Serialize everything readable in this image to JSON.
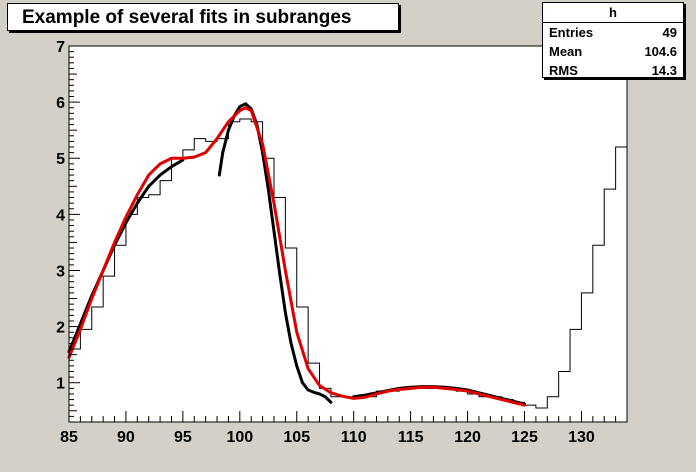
{
  "title": "Example of several fits in subranges",
  "stats": {
    "name": "h",
    "rows": [
      {
        "label": "Entries",
        "value": "49"
      },
      {
        "label": "Mean",
        "value": "104.6"
      },
      {
        "label": "RMS",
        "value": "14.3"
      }
    ]
  },
  "chart_data": {
    "type": "line",
    "xlim": [
      85,
      134
    ],
    "ylim": [
      0.3,
      7
    ],
    "xticks": [
      85,
      90,
      95,
      100,
      105,
      110,
      115,
      120,
      125,
      130
    ],
    "yticks": [
      1,
      2,
      3,
      4,
      5,
      6,
      7
    ],
    "histogram": {
      "bin_edges": [
        85,
        86,
        87,
        88,
        89,
        90,
        91,
        92,
        93,
        94,
        95,
        96,
        97,
        98,
        99,
        100,
        101,
        102,
        103,
        104,
        105,
        106,
        107,
        108,
        109,
        110,
        111,
        112,
        113,
        114,
        115,
        116,
        117,
        118,
        119,
        120,
        121,
        122,
        123,
        124,
        125,
        126,
        127,
        128,
        129,
        130,
        131,
        132,
        133,
        134
      ],
      "counts": [
        1.6,
        1.95,
        2.35,
        2.9,
        3.45,
        4.0,
        4.3,
        4.35,
        4.6,
        5.0,
        5.15,
        5.35,
        5.3,
        5.35,
        5.65,
        5.7,
        5.65,
        5.0,
        4.3,
        3.4,
        2.35,
        1.35,
        0.9,
        0.75,
        0.75,
        0.75,
        0.75,
        0.85,
        0.85,
        0.9,
        0.9,
        0.9,
        0.9,
        0.9,
        0.85,
        0.8,
        0.75,
        0.75,
        0.7,
        0.65,
        0.6,
        0.55,
        0.75,
        1.2,
        1.95,
        2.6,
        3.45,
        4.45,
        5.2
      ],
      "color": "#000000"
    },
    "series": [
      {
        "x": [
          85,
          86,
          87,
          88,
          89,
          90,
          91,
          92,
          93,
          94,
          95
        ],
        "y": [
          1.55,
          2.05,
          2.55,
          3.0,
          3.45,
          3.85,
          4.2,
          4.5,
          4.7,
          4.85,
          4.97
        ],
        "color": "#000000"
      },
      {
        "x": [
          98.2,
          98.5,
          99,
          99.5,
          100,
          100.5,
          101,
          101.5,
          102,
          102.5,
          103,
          103.5,
          104,
          104.5,
          105,
          105.5,
          106,
          106.5,
          107,
          107.5,
          108
        ],
        "y": [
          4.7,
          5.1,
          5.5,
          5.75,
          5.92,
          5.97,
          5.88,
          5.6,
          5.1,
          4.45,
          3.7,
          2.95,
          2.25,
          1.7,
          1.3,
          1.0,
          0.87,
          0.83,
          0.8,
          0.75,
          0.65
        ],
        "color": "#000000"
      },
      {
        "x": [
          110,
          111,
          112,
          113,
          114,
          115,
          116,
          117,
          118,
          119,
          120,
          121,
          122,
          123,
          124,
          125
        ],
        "y": [
          0.75,
          0.78,
          0.82,
          0.86,
          0.9,
          0.92,
          0.93,
          0.93,
          0.92,
          0.9,
          0.87,
          0.82,
          0.77,
          0.72,
          0.67,
          0.62
        ],
        "color": "#000000"
      },
      {
        "x": [
          85,
          86,
          87,
          88,
          89,
          90,
          91,
          92,
          93,
          94,
          95,
          96,
          97,
          98,
          99,
          100,
          100.5,
          101,
          102,
          103,
          104,
          105,
          106,
          107,
          108,
          109,
          110,
          111,
          112,
          113,
          114,
          115,
          116,
          117,
          118,
          119,
          120,
          121,
          122,
          123,
          124,
          125
        ],
        "y": [
          1.45,
          1.95,
          2.5,
          3.0,
          3.5,
          3.95,
          4.35,
          4.7,
          4.9,
          5.0,
          5.0,
          5.02,
          5.1,
          5.35,
          5.65,
          5.85,
          5.9,
          5.85,
          5.25,
          4.2,
          3.0,
          1.9,
          1.25,
          0.95,
          0.82,
          0.76,
          0.72,
          0.74,
          0.8,
          0.85,
          0.88,
          0.9,
          0.92,
          0.92,
          0.9,
          0.88,
          0.85,
          0.8,
          0.75,
          0.7,
          0.65,
          0.6
        ],
        "color": "#e00000"
      }
    ]
  }
}
